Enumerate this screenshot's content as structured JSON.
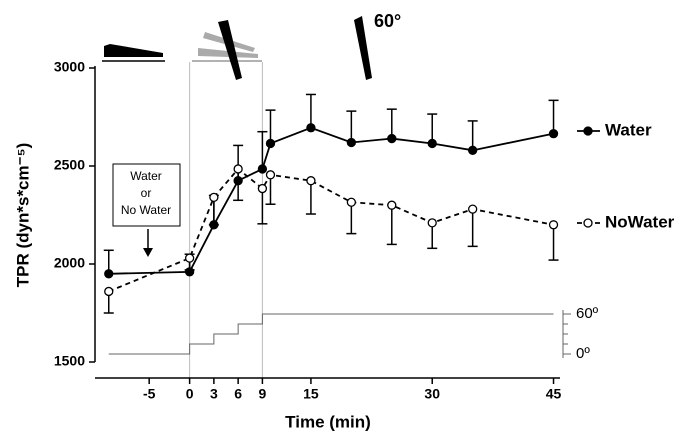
{
  "chart_data": {
    "type": "line",
    "y_label": "TPR (dyn*s*cm⁻⁵)",
    "x_label": "Time (min)",
    "x": [
      -10,
      0,
      3,
      6,
      9,
      10,
      15,
      20,
      25,
      30,
      35,
      45
    ],
    "series": [
      {
        "name": "Water",
        "color": "#000000",
        "values": [
          1950,
          1960,
          2200,
          2425,
          2485,
          2615,
          2695,
          2620,
          2640,
          2615,
          2580,
          2665
        ],
        "errors": [
          120,
          90,
          150,
          180,
          190,
          170,
          170,
          160,
          150,
          150,
          150,
          170
        ]
      },
      {
        "name": "NoWater",
        "color": "#000000",
        "values": [
          1860,
          2030,
          2340,
          2485,
          2385,
          2455,
          2425,
          2315,
          2300,
          2210,
          2280,
          2200
        ],
        "errors": [
          110,
          60,
          140,
          160,
          180,
          150,
          170,
          160,
          200,
          130,
          190,
          180
        ]
      }
    ],
    "xlim": [
      -11.7,
      45.8
    ],
    "ylim": [
      1500,
      3000
    ],
    "xticks": [
      -5,
      0,
      3,
      6,
      9,
      15,
      30,
      45
    ],
    "yticks": [
      1500,
      2000,
      2500,
      3000
    ],
    "tilt": {
      "x": [
        -10,
        0,
        3,
        6,
        9,
        45
      ],
      "values": [
        0,
        15,
        30,
        45,
        60,
        60
      ],
      "lim": [
        0,
        60
      ],
      "ticks": [
        {
          "value": 0,
          "label": "0º"
        },
        {
          "value": 60,
          "label": "60º"
        }
      ]
    },
    "annotation": [
      "Water",
      "or",
      "No Water"
    ],
    "angle_label": "60°"
  }
}
